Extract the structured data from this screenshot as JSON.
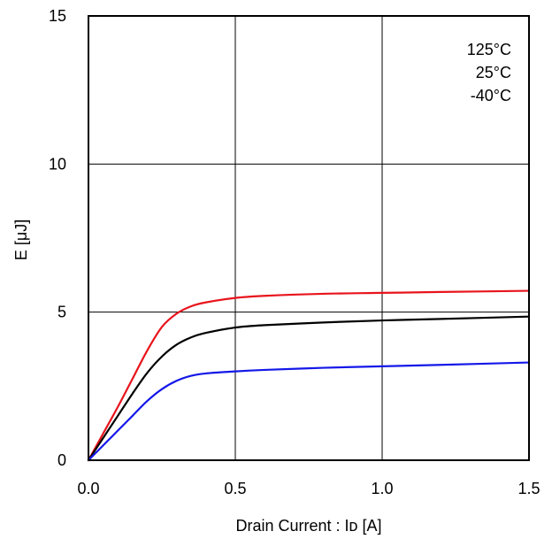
{
  "chart_data": {
    "type": "line",
    "title": "",
    "xlabel": "Drain Current : Iᴅ [A]",
    "ylabel": "E [μJ]",
    "xlim": [
      0,
      1.5
    ],
    "ylim": [
      0,
      15
    ],
    "x_ticks": [
      "0.0",
      "0.5",
      "1.0",
      "1.5"
    ],
    "y_ticks": [
      "0",
      "5",
      "10",
      "15"
    ],
    "grid": true,
    "legend_position": "top-right",
    "legend": [
      "125°C",
      "25°C",
      "-40°C"
    ],
    "series": [
      {
        "name": "125°C",
        "color": "#e8141c",
        "x": [
          0,
          0.05,
          0.1,
          0.15,
          0.2,
          0.25,
          0.3,
          0.35,
          0.4,
          0.5,
          0.6,
          0.8,
          1.0,
          1.2,
          1.5
        ],
        "y": [
          0,
          0.9,
          1.8,
          2.75,
          3.7,
          4.5,
          4.95,
          5.2,
          5.33,
          5.48,
          5.55,
          5.62,
          5.65,
          5.68,
          5.72
        ]
      },
      {
        "name": "25°C",
        "color": "#000000",
        "x": [
          0,
          0.05,
          0.1,
          0.15,
          0.2,
          0.25,
          0.3,
          0.35,
          0.4,
          0.5,
          0.6,
          0.8,
          1.0,
          1.2,
          1.5
        ],
        "y": [
          0,
          0.75,
          1.5,
          2.25,
          2.95,
          3.5,
          3.9,
          4.15,
          4.3,
          4.48,
          4.56,
          4.65,
          4.72,
          4.77,
          4.85
        ]
      },
      {
        "name": "-40°C",
        "color": "#1418e8",
        "x": [
          0,
          0.05,
          0.1,
          0.15,
          0.2,
          0.25,
          0.3,
          0.35,
          0.4,
          0.5,
          0.6,
          0.8,
          1.0,
          1.2,
          1.5
        ],
        "y": [
          0,
          0.5,
          1.0,
          1.5,
          2.0,
          2.4,
          2.68,
          2.85,
          2.93,
          3.0,
          3.05,
          3.12,
          3.17,
          3.22,
          3.3
        ]
      }
    ]
  }
}
